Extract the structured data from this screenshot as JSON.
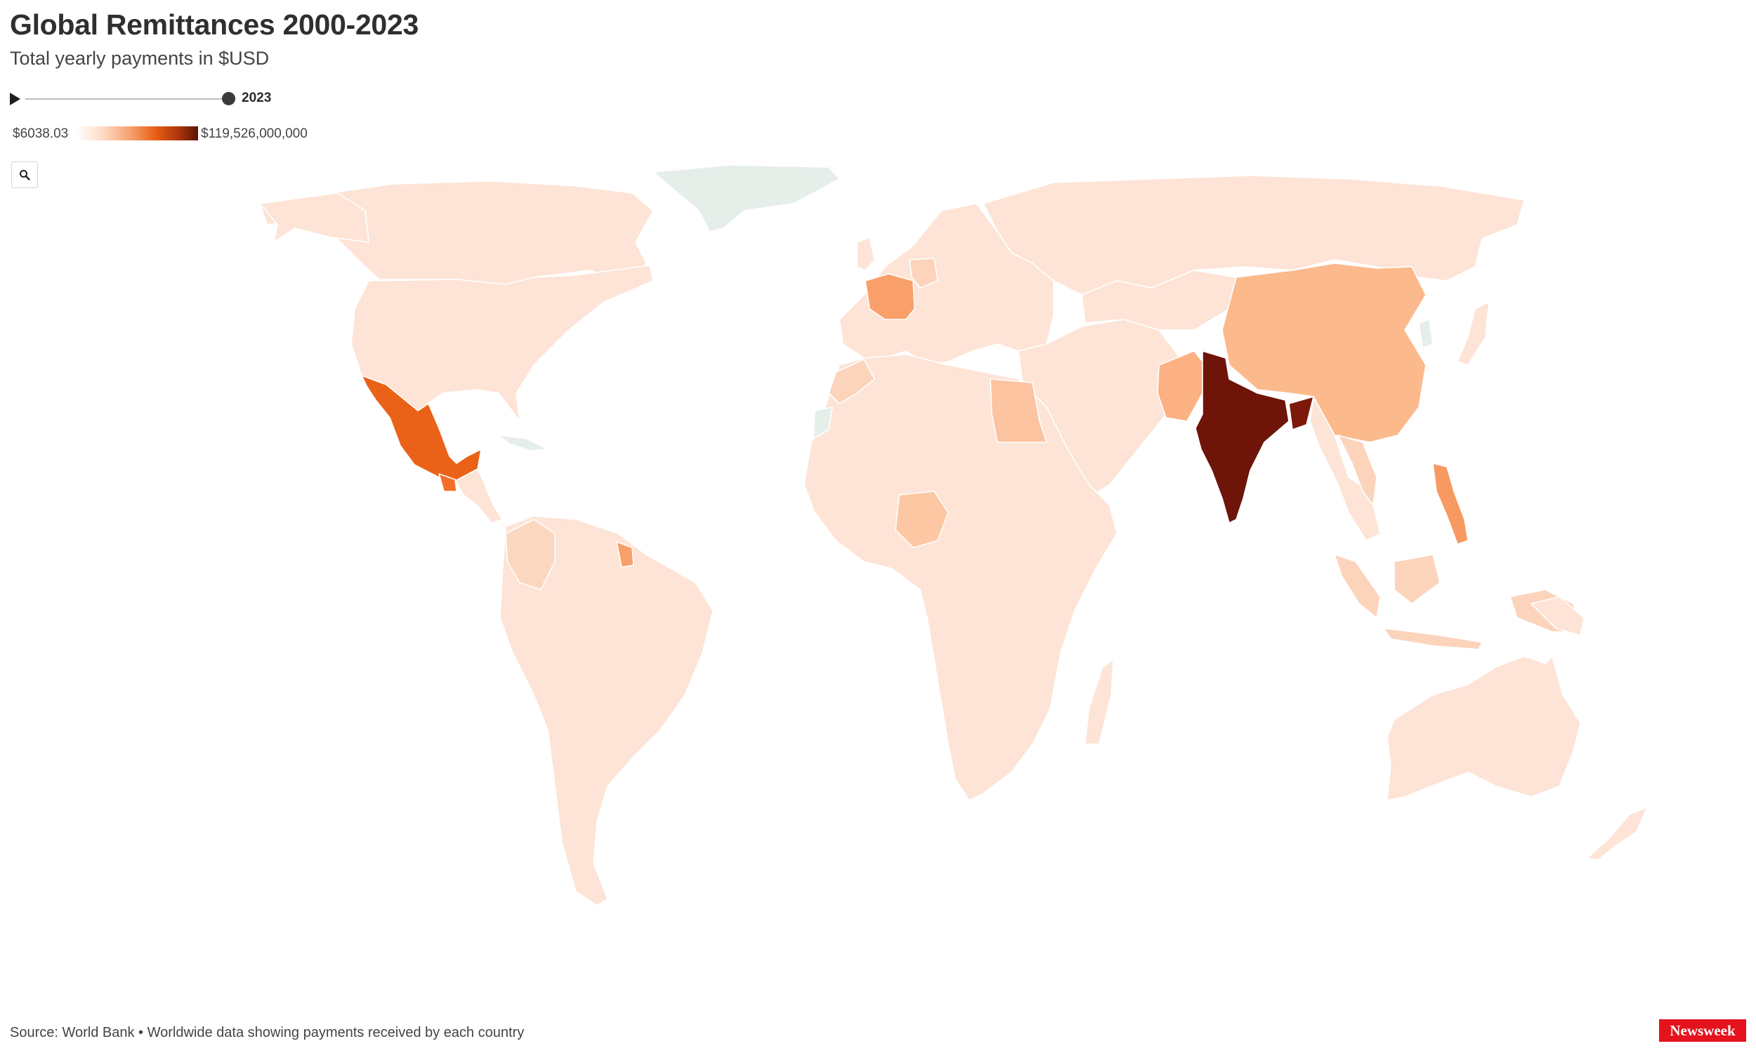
{
  "header": {
    "title": "Global Remittances 2000-2023",
    "subtitle": "Total yearly payments in $USD"
  },
  "timeline": {
    "start_year": 2000,
    "end_year": 2023,
    "selected_year": "2023",
    "position_fraction": 1.0
  },
  "legend": {
    "min_label": "$6038.03",
    "max_label": "$119,526,000,000",
    "colors": [
      "#fdd8c0",
      "#f59e6a",
      "#e85d14",
      "#a8330b",
      "#5b1206"
    ]
  },
  "icons": {
    "search": "search-icon",
    "play": "play-icon"
  },
  "map": {
    "no_data_color": "#e6eeea",
    "shading": {
      "India": "#6e1408",
      "Mexico": "#ea6218",
      "China": "#fbb98c",
      "Philippines": "#f69a61",
      "France": "#f9a06a",
      "Egypt": "#fcc3a0",
      "Pakistan": "#fbb182",
      "Bangladesh": "#7d190a",
      "Nigeria": "#fcc7a2",
      "Guatemala": "#f46d2a",
      "Germany": "#fcd3bb",
      "Colombia": "#fcd7bf",
      "Vietnam": "#fcd3bb",
      "Indonesia": "#fcd3bb",
      "Morocco": "#fcd3bb",
      "Suriname/Guyana": "#f9a06a",
      "other_countries": "#fde4d6"
    }
  },
  "footer": {
    "source": "Source: World Bank • Worldwide data showing payments received by each country",
    "brand": "Newsweek"
  }
}
